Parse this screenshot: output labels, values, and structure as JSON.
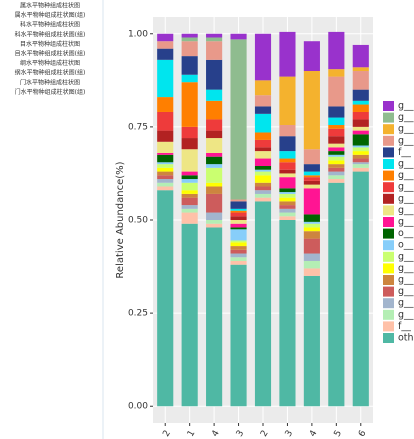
{
  "sidebar": {
    "items": [
      "属水平物种组成柱状图",
      "属水平物种组成柱状图(组)",
      "科水平物种组成柱状图",
      "科水平物种组成柱状图(组)",
      "目水平物种组成柱状图",
      "目水平物种组成柱状图(组)",
      "纲水平物种组成柱状图",
      "纲水平物种组成柱状图(组)",
      "门水平物种组成柱状图",
      "门水平物种组成柱状图(组)"
    ]
  },
  "chart_data": {
    "type": "stacked-bar",
    "y_label": "Relative Abundance(%)",
    "categories": [
      "2",
      "1",
      "4",
      "3",
      "2",
      "3",
      "4",
      "5",
      "6"
    ],
    "ylim": [
      -0.045,
      1.045
    ],
    "yticks": [
      {
        "value": 0,
        "label": "0.00"
      },
      {
        "value": 0.25,
        "label": "0.25"
      },
      {
        "value": 0.5,
        "label": "0.50"
      },
      {
        "value": 0.75,
        "label": "0.75"
      },
      {
        "value": 1,
        "label": "1.00"
      }
    ],
    "grid": true,
    "series": [
      {
        "name": "g__",
        "color": "#9932cc",
        "values": [
          0.02,
          0.01,
          0.01,
          0.015,
          0.125,
          0.12,
          0.08,
          0.1,
          0.06
        ]
      },
      {
        "name": "g__",
        "color": "#8fbc8f",
        "values": [
          0,
          0.01,
          0.01,
          0.43,
          0,
          0,
          0,
          0,
          0
        ]
      },
      {
        "name": "g__",
        "color": "#f4b22e",
        "values": [
          0,
          0,
          0,
          0,
          0.04,
          0.13,
          0.21,
          0.02,
          0.01
        ]
      },
      {
        "name": "g__",
        "color": "#e8998a",
        "values": [
          0.02,
          0.04,
          0.05,
          0.005,
          0.03,
          0.03,
          0.04,
          0.08,
          0.05
        ]
      },
      {
        "name": "f__",
        "color": "#27408b",
        "values": [
          0.03,
          0.05,
          0.08,
          0.02,
          0.02,
          0.04,
          0.02,
          0.03,
          0.03
        ]
      },
      {
        "name": "g__",
        "color": "#00e5ee",
        "values": [
          0.1,
          0.02,
          0.03,
          0.005,
          0.05,
          0.02,
          0.01,
          0.02,
          0.01
        ]
      },
      {
        "name": "g__",
        "color": "#ff7f00",
        "values": [
          0.04,
          0.12,
          0.05,
          0.005,
          0.02,
          0.01,
          0.005,
          0.01,
          0.02
        ]
      },
      {
        "name": "g__",
        "color": "#ee3b3b",
        "values": [
          0.05,
          0.03,
          0.03,
          0.01,
          0.02,
          0.02,
          0.01,
          0.02,
          0.02
        ]
      },
      {
        "name": "g__",
        "color": "#b22222",
        "values": [
          0.03,
          0.03,
          0.02,
          0.01,
          0.01,
          0.01,
          0.01,
          0.02,
          0.02
        ]
      },
      {
        "name": "g__",
        "color": "#eee685",
        "values": [
          0.03,
          0.06,
          0.04,
          0.01,
          0.02,
          0.01,
          0.01,
          0.01,
          0.01
        ]
      },
      {
        "name": "g__",
        "color": "#ff1493",
        "values": [
          0.005,
          0.01,
          0.01,
          0.01,
          0.02,
          0.03,
          0.07,
          0.01,
          0.01
        ]
      },
      {
        "name": "o__",
        "color": "#006400",
        "values": [
          0.02,
          0.01,
          0.02,
          0.005,
          0.01,
          0.01,
          0.02,
          0.01,
          0.03
        ]
      },
      {
        "name": "o__",
        "color": "#87cefa",
        "values": [
          0.005,
          0.01,
          0.01,
          0.03,
          0.005,
          0.005,
          0.005,
          0.005,
          0.005
        ]
      },
      {
        "name": "g__",
        "color": "#caff70",
        "values": [
          0.01,
          0.02,
          0.04,
          0.005,
          0.01,
          0.01,
          0.01,
          0.01,
          0.01
        ]
      },
      {
        "name": "g__",
        "color": "#ffff00",
        "values": [
          0.01,
          0.01,
          0.01,
          0.01,
          0.02,
          0.01,
          0.01,
          0.01,
          0.01
        ]
      },
      {
        "name": "g__",
        "color": "#cd853f",
        "values": [
          0.01,
          0.01,
          0.02,
          0.01,
          0.01,
          0.01,
          0.02,
          0.01,
          0.01
        ]
      },
      {
        "name": "g__",
        "color": "#cd5c5c",
        "values": [
          0.01,
          0.02,
          0.05,
          0.01,
          0.01,
          0.01,
          0.04,
          0.01,
          0.01
        ]
      },
      {
        "name": "g__",
        "color": "#a2b5cd",
        "values": [
          0.01,
          0.01,
          0.02,
          0.01,
          0.01,
          0.01,
          0.02,
          0.01,
          0.005
        ]
      },
      {
        "name": "g__",
        "color": "#b4eeb4",
        "values": [
          0.01,
          0.01,
          0.01,
          0.01,
          0.01,
          0.01,
          0.02,
          0.01,
          0.01
        ]
      },
      {
        "name": "f__",
        "color": "#ffc1a8",
        "values": [
          0.01,
          0.03,
          0.01,
          0.01,
          0.01,
          0.01,
          0.02,
          0.01,
          0.01
        ]
      },
      {
        "name": "oth",
        "color": "#4fb8a4",
        "values": [
          0.58,
          0.49,
          0.48,
          0.38,
          0.55,
          0.5,
          0.35,
          0.6,
          0.63
        ]
      }
    ]
  }
}
